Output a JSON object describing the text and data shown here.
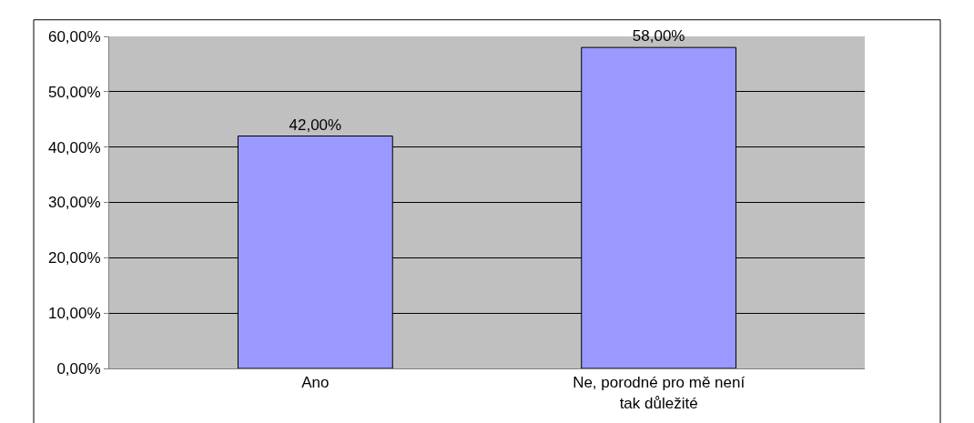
{
  "chart_data": {
    "type": "bar",
    "categories": [
      "Ano",
      "Ne, porodné pro mě není tak důležité"
    ],
    "values": [
      42,
      58
    ],
    "value_labels": [
      "42,00%",
      "58,00%"
    ],
    "color": "#9999ff",
    "ylim": [
      0,
      60
    ],
    "yticks": [
      {
        "value": 0,
        "label": "0,00%"
      },
      {
        "value": 10,
        "label": "10,00%"
      },
      {
        "value": 20,
        "label": "20,00%"
      },
      {
        "value": 30,
        "label": "30,00%"
      },
      {
        "value": 40,
        "label": "40,00%"
      },
      {
        "value": 50,
        "label": "50,00%"
      },
      {
        "value": 60,
        "label": "60,00%"
      }
    ],
    "grid": "y",
    "legend": false
  }
}
